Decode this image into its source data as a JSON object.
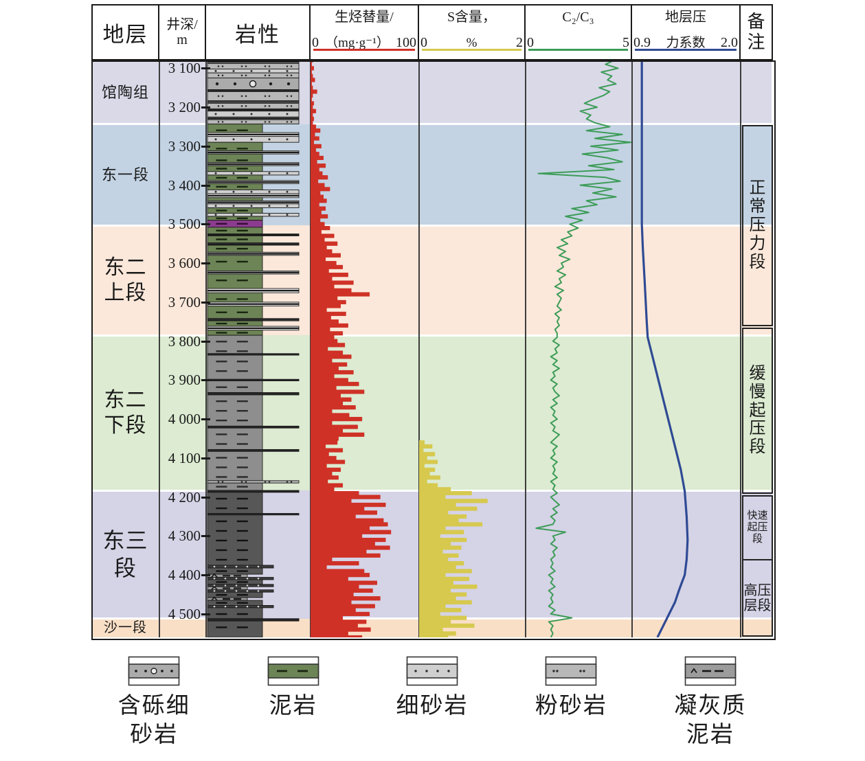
{
  "header": {
    "stratigraphy": "地层",
    "depth_line1": "井深/",
    "depth_line2": "m",
    "lithology": "岩性",
    "remarks": "备\n注"
  },
  "chart_data": {
    "type": "well-log",
    "depth_axis": {
      "label": "井深/m",
      "top": 3080,
      "bottom": 4560,
      "tick_start": 3100,
      "tick_step": 100,
      "tick_labels": [
        "3 100",
        "3 200",
        "3 300",
        "3 400",
        "3 500",
        "3 600",
        "3 700",
        "3 800",
        "3 900",
        "4 000",
        "4 100",
        "4 200",
        "4 300",
        "4 400",
        "4 500"
      ]
    },
    "formations": [
      {
        "name": "馆陶组",
        "label": "馆陶组",
        "top": 3080,
        "bottom": 3243,
        "color": "#d9d9e8",
        "font": 22
      },
      {
        "name": "东一段",
        "label": "东一段",
        "top": 3243,
        "bottom": 3503,
        "color": "#c3d3e3",
        "font": 22
      },
      {
        "name": "东二上段",
        "label": "东二\n上段",
        "top": 3503,
        "bottom": 3785,
        "color": "#fbe8da",
        "font": 30
      },
      {
        "name": "东二下段",
        "label": "东二\n下段",
        "top": 3785,
        "bottom": 4183,
        "color": "#dcebd1",
        "font": 30
      },
      {
        "name": "东三段",
        "label": "东三\n段",
        "top": 4183,
        "bottom": 4512,
        "color": "#d5d3e6",
        "font": 32
      },
      {
        "name": "沙一段",
        "label": "沙一段",
        "top": 4512,
        "bottom": 4560,
        "color": "#f9dfc6",
        "font": 20
      }
    ],
    "remarks": [
      {
        "label": "正常\n压力\n段",
        "top": 3245,
        "bottom": 3755,
        "font": 24
      },
      {
        "label": "缓慢\n起压\n段",
        "top": 3765,
        "bottom": 4185,
        "font": 24
      },
      {
        "label": "快速\n起压\n段",
        "top": 4195,
        "bottom": 4355,
        "font": 15
      },
      {
        "label": "高压\n层段",
        "top": 4360,
        "bottom": 4552,
        "font": 20
      }
    ],
    "tracks": [
      {
        "id": "hydrocarbon",
        "title": "生烃替量/",
        "unit": "（mg·g⁻¹）",
        "min": 0,
        "max": 100,
        "min_label": "0",
        "max_label": "100",
        "color": "#cf3126",
        "style": "filled-bars",
        "series": {
          "start": 3080,
          "step": 10,
          "values": [
            2,
            1,
            3,
            1,
            2,
            4,
            1,
            2,
            6,
            2,
            1,
            3,
            2,
            5,
            2,
            3,
            2,
            5,
            9,
            4,
            8,
            3,
            10,
            5,
            8,
            12,
            6,
            14,
            8,
            11,
            16,
            7,
            13,
            18,
            9,
            12,
            15,
            8,
            14,
            10,
            16,
            9,
            13,
            18,
            10,
            22,
            13,
            25,
            15,
            20,
            28,
            14,
            24,
            30,
            17,
            35,
            20,
            40,
            22,
            38,
            55,
            25,
            33,
            28,
            15,
            33,
            19,
            26,
            35,
            18,
            30,
            22,
            25,
            32,
            16,
            30,
            38,
            20,
            34,
            26,
            40,
            22,
            35,
            45,
            24,
            50,
            28,
            38,
            30,
            42,
            20,
            36,
            48,
            20,
            44,
            30,
            50,
            26,
            25,
            14,
            30,
            17,
            24,
            32,
            15,
            28,
            20,
            26,
            16,
            30,
            22,
            45,
            65,
            38,
            70,
            50,
            62,
            42,
            68,
            72,
            55,
            75,
            48,
            70,
            60,
            74,
            52,
            65,
            20,
            45,
            15,
            50,
            55,
            35,
            62,
            45,
            58,
            40,
            65,
            38,
            60,
            42,
            55,
            30,
            52,
            44,
            56,
            35,
            48
          ]
        }
      },
      {
        "id": "sulfur",
        "title": "S含量，",
        "unit": "%",
        "min": 0,
        "max": 2,
        "min_label": "0",
        "max_label": "2",
        "color": "#d6c94e",
        "style": "filled-bars",
        "series": {
          "start": 4060,
          "step": 10,
          "values": [
            0.1,
            0.25,
            0.08,
            0.3,
            0.15,
            0.35,
            0.1,
            0.3,
            0.2,
            0.4,
            0.15,
            0.35,
            0.6,
            1.0,
            0.5,
            1.3,
            0.7,
            1.1,
            0.55,
            0.9,
            0.75,
            1.2,
            0.5,
            0.85,
            0.4,
            0.9,
            0.6,
            0.8,
            0.45,
            0.75,
            0.55,
            0.85,
            0.7,
            1.0,
            0.5,
            0.95,
            0.65,
            1.1,
            0.6,
            0.9,
            0.7,
            1.0,
            0.5,
            0.8,
            0.4,
            0.9,
            0.6,
            1.05,
            0.45,
            0.7,
            0.55
          ]
        }
      },
      {
        "id": "c2c3",
        "title": "C₂/C₃",
        "unit": "",
        "min": 0,
        "max": 5,
        "min_label": "0",
        "max_label": "5",
        "color": "#3d9c58",
        "style": "line",
        "series": {
          "start": 3080,
          "step": 10,
          "values": [
            4.2,
            3.8,
            4.4,
            3.6,
            4.1,
            3.9,
            4.3,
            3.5,
            4.0,
            3.7,
            3.2,
            2.8,
            3.4,
            2.6,
            3.1,
            2.9,
            3.3,
            4.0,
            2.9,
            4.6,
            3.3,
            5.0,
            3.1,
            4.4,
            2.7,
            3.9,
            4.6,
            3.0,
            4.2,
            0.6,
            3.8,
            4.5,
            2.6,
            4.1,
            3.2,
            4.3,
            2.9,
            3.4,
            2.2,
            3.0,
            1.9,
            2.7,
            2.1,
            2.5,
            2.0,
            2.2,
            1.7,
            2.0,
            1.5,
            1.9,
            1.6,
            2.1,
            1.7,
            1.8,
            1.5,
            1.9,
            1.6,
            1.7,
            1.4,
            1.8,
            1.5,
            1.7,
            1.6,
            1.5,
            1.7,
            1.4,
            1.6,
            1.5,
            1.6,
            1.4,
            1.5,
            1.5,
            1.3,
            1.6,
            1.4,
            1.5,
            1.2,
            1.5,
            1.3,
            1.6,
            1.3,
            1.4,
            1.2,
            1.5,
            1.3,
            1.4,
            1.6,
            1.3,
            1.5,
            1.2,
            1.4,
            1.3,
            1.5,
            1.2,
            1.4,
            1.3,
            1.6,
            1.4,
            1.2,
            1.5,
            1.3,
            1.4,
            1.2,
            1.5,
            1.3,
            1.4,
            1.3,
            1.5,
            1.2,
            1.4,
            1.3,
            1.5,
            1.2,
            1.4,
            1.6,
            1.3,
            1.5,
            1.2,
            1.4,
            1.3,
            0.5,
            1.9,
            1.3,
            1.4,
            1.2,
            1.5,
            1.3,
            1.4,
            1.2,
            1.3,
            1.2,
            1.4,
            1.1,
            1.3,
            1.2,
            1.4,
            1.1,
            1.3,
            1.2,
            1.3,
            1.1,
            1.4,
            1.2,
            2.2,
            1.1,
            1.3,
            1.2,
            1.3,
            1.2
          ]
        }
      },
      {
        "id": "pressure",
        "title": "地层压",
        "unit": "力系数",
        "min": 0.9,
        "max": 2.0,
        "min_label": "0.9",
        "max_label": "2.0",
        "color": "#2f4a94",
        "style": "line",
        "series_points": [
          [
            3080,
            1.0
          ],
          [
            3300,
            1.0
          ],
          [
            3500,
            1.0
          ],
          [
            3560,
            1.01
          ],
          [
            3650,
            1.03
          ],
          [
            3750,
            1.05
          ],
          [
            3790,
            1.06
          ],
          [
            3850,
            1.12
          ],
          [
            3950,
            1.22
          ],
          [
            4050,
            1.32
          ],
          [
            4130,
            1.4
          ],
          [
            4185,
            1.44
          ],
          [
            4250,
            1.46
          ],
          [
            4310,
            1.47
          ],
          [
            4360,
            1.46
          ],
          [
            4400,
            1.44
          ],
          [
            4420,
            1.41
          ],
          [
            4440,
            1.38
          ],
          [
            4470,
            1.34
          ],
          [
            4500,
            1.28
          ],
          [
            4530,
            1.22
          ],
          [
            4560,
            1.16
          ]
        ]
      }
    ],
    "lithology_layers": [
      [
        "lam",
        3080,
        3088
      ],
      [
        "silt",
        3088,
        3102
      ],
      [
        "fine",
        3102,
        3112
      ],
      [
        "silt",
        3112,
        3125
      ],
      [
        "pebbly",
        3125,
        3155
      ],
      [
        "dark",
        3155,
        3160
      ],
      [
        "silt",
        3160,
        3183
      ],
      [
        "lam",
        3183,
        3190
      ],
      [
        "silt",
        3190,
        3204
      ],
      [
        "lam",
        3204,
        3210
      ],
      [
        "fine",
        3210,
        3225
      ],
      [
        "lam",
        3225,
        3232
      ],
      [
        "silt",
        3232,
        3243
      ],
      [
        "mudG",
        3243,
        3265
      ],
      [
        "lam",
        3265,
        3275
      ],
      [
        "fine",
        3275,
        3290
      ],
      [
        "mudG",
        3290,
        3312
      ],
      [
        "lam",
        3312,
        3320
      ],
      [
        "mudG",
        3320,
        3342
      ],
      [
        "lam",
        3342,
        3350
      ],
      [
        "mudG",
        3350,
        3365
      ],
      [
        "fine",
        3365,
        3374
      ],
      [
        "mudG",
        3374,
        3388
      ],
      [
        "lam",
        3388,
        3396
      ],
      [
        "mudG",
        3396,
        3412
      ],
      [
        "fine",
        3412,
        3422
      ],
      [
        "lam",
        3422,
        3432
      ],
      [
        "mudG",
        3432,
        3440
      ],
      [
        "lam",
        3440,
        3448
      ],
      [
        "fine",
        3448,
        3458
      ],
      [
        "mudG",
        3458,
        3472
      ],
      [
        "fine",
        3472,
        3480
      ],
      [
        "mudG",
        3480,
        3490
      ],
      [
        "purple",
        3490,
        3508
      ],
      [
        "mudG",
        3508,
        3525
      ],
      [
        "lam",
        3525,
        3530
      ],
      [
        "mudG",
        3530,
        3548
      ],
      [
        "lam",
        3548,
        3554
      ],
      [
        "mudG",
        3554,
        3572
      ],
      [
        "lam",
        3572,
        3580
      ],
      [
        "mudG",
        3580,
        3620
      ],
      [
        "lam",
        3620,
        3628
      ],
      [
        "mudG",
        3628,
        3665
      ],
      [
        "lam",
        3665,
        3676
      ],
      [
        "mudG",
        3676,
        3700
      ],
      [
        "lam",
        3700,
        3710
      ],
      [
        "mudG",
        3710,
        3742
      ],
      [
        "lam",
        3742,
        3748
      ],
      [
        "mudG",
        3748,
        3762
      ],
      [
        "lam",
        3762,
        3772
      ],
      [
        "mudG",
        3772,
        3785
      ],
      [
        "mudGy",
        3785,
        3832
      ],
      [
        "dark",
        3832,
        3836
      ],
      [
        "mudGy",
        3836,
        3898
      ],
      [
        "dark",
        3898,
        3902
      ],
      [
        "mudGy",
        3902,
        3932
      ],
      [
        "dark",
        3932,
        3938
      ],
      [
        "mudGy",
        3938,
        4018
      ],
      [
        "dark",
        4018,
        4023
      ],
      [
        "mudGy",
        4023,
        4078
      ],
      [
        "dark",
        4078,
        4083
      ],
      [
        "mudGy",
        4083,
        4158
      ],
      [
        "silt",
        4158,
        4164
      ],
      [
        "mudGy",
        4164,
        4183
      ],
      [
        "dark",
        4183,
        4188
      ],
      [
        "mudD",
        4188,
        4242
      ],
      [
        "dark",
        4242,
        4246
      ],
      [
        "mudD",
        4246,
        4375
      ],
      [
        "tuffdot",
        4375,
        4382
      ],
      [
        "mudD",
        4382,
        4398
      ],
      [
        "tuff",
        4398,
        4406
      ],
      [
        "tuffdot",
        4406,
        4412
      ],
      [
        "mudD",
        4412,
        4424
      ],
      [
        "tuffdot",
        4424,
        4430
      ],
      [
        "tuff",
        4430,
        4438
      ],
      [
        "tuffdot",
        4438,
        4444
      ],
      [
        "mudD",
        4444,
        4458
      ],
      [
        "tuff",
        4458,
        4465
      ],
      [
        "mudD",
        4465,
        4478
      ],
      [
        "tuffdot",
        4478,
        4484
      ],
      [
        "mudD",
        4484,
        4512
      ],
      [
        "dark",
        4512,
        4518
      ],
      [
        "mudD",
        4518,
        4560
      ]
    ]
  },
  "legend": [
    {
      "label": "含砾细\n砂岩",
      "type": "pebbly"
    },
    {
      "label": "泥岩",
      "type": "mudG"
    },
    {
      "label": "细砂岩",
      "type": "fine"
    },
    {
      "label": "粉砂岩",
      "type": "silt"
    },
    {
      "label": "凝灰质\n泥岩",
      "type": "tuff"
    }
  ]
}
